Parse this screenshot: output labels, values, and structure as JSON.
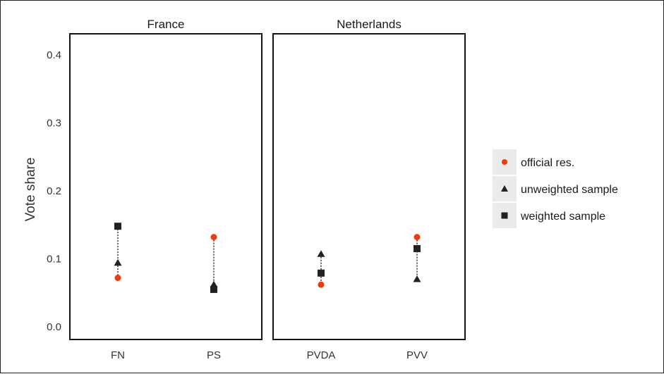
{
  "chart_data": {
    "type": "scatter",
    "ylabel": "Vote share",
    "xlabel": "",
    "ylim": [
      -0.01,
      0.42
    ],
    "yticks": [
      "0.0",
      "0.1",
      "0.2",
      "0.3",
      "0.4"
    ],
    "ytick_values": [
      0.0,
      0.1,
      0.2,
      0.3,
      0.4
    ],
    "grid": false,
    "legend_placement": "right",
    "colors": {
      "official": "#f03a0e",
      "unweighted": "#222222",
      "weighted": "#222222"
    },
    "series_names": {
      "official": "official res.",
      "unweighted": "unweighted sample",
      "weighted": "weighted sample"
    },
    "panels": [
      {
        "title": "France",
        "categories": [
          "FN",
          "PS"
        ],
        "points": [
          {
            "category": "FN",
            "official": 0.072,
            "unweighted": 0.094,
            "weighted": 0.148
          },
          {
            "category": "PS",
            "official": 0.132,
            "unweighted": 0.062,
            "weighted": 0.055
          }
        ]
      },
      {
        "title": "Netherlands",
        "categories": [
          "PVDA",
          "PVV"
        ],
        "points": [
          {
            "category": "PVDA",
            "official": 0.062,
            "unweighted": 0.107,
            "weighted": 0.079
          },
          {
            "category": "PVV",
            "official": 0.132,
            "unweighted": 0.07,
            "weighted": 0.115
          }
        ]
      }
    ]
  }
}
